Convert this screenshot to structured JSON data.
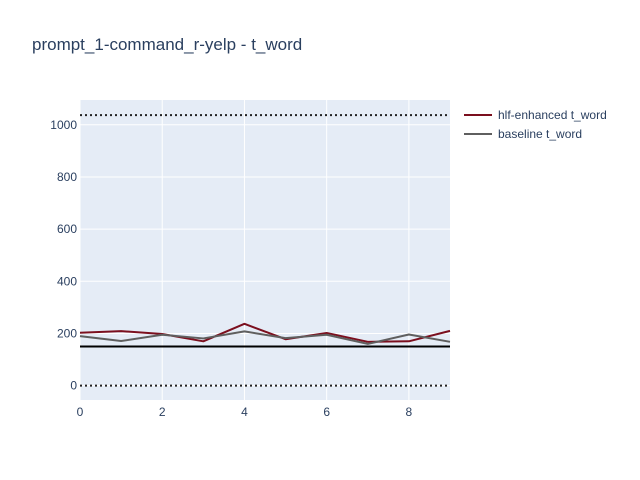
{
  "chart_data": {
    "type": "line",
    "title": "prompt_1-command_r-yelp - t_word",
    "xlabel": "",
    "ylabel": "",
    "xlim": [
      0,
      9
    ],
    "ylim": [
      -55,
      1095
    ],
    "x_ticks": [
      0,
      2,
      4,
      6,
      8
    ],
    "y_ticks": [
      0,
      200,
      400,
      600,
      800,
      1000
    ],
    "grid": true,
    "legend_position": "top-right, outside plot",
    "plot_background": "#e5ecf6",
    "x": [
      0,
      1,
      2,
      3,
      4,
      5,
      6,
      7,
      8,
      9
    ],
    "series": [
      {
        "name": "hlf-enhanced t_word",
        "color": "#7b0f1e",
        "values": [
          203,
          209,
          198,
          170,
          237,
          178,
          202,
          168,
          170,
          210
        ]
      },
      {
        "name": "baseline t_word",
        "color": "#5f5f5f",
        "values": [
          190,
          171,
          195,
          181,
          208,
          182,
          195,
          160,
          196,
          168
        ]
      }
    ],
    "reference_lines": [
      {
        "y": 1037,
        "style": "dotted",
        "color": "#222222"
      },
      {
        "y": 0,
        "style": "dotted",
        "color": "#222222"
      },
      {
        "y": 150,
        "style": "solid",
        "color": "#000000"
      }
    ]
  }
}
